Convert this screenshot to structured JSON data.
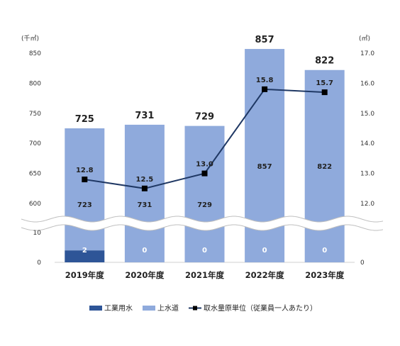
{
  "chart_data": {
    "type": "bar",
    "categories": [
      "2019年度",
      "2020年度",
      "2021年度",
      "2022年度",
      "2023年度"
    ],
    "left_axis_unit": "(千㎥)",
    "right_axis_unit": "(㎥)",
    "left_ticks_upper": [
      "850",
      "800",
      "750",
      "700",
      "650",
      "600"
    ],
    "left_ticks_lower": [
      "10",
      "0"
    ],
    "right_ticks_upper": [
      "17.0",
      "16.0",
      "15.0",
      "14.0",
      "13.0",
      "12.0"
    ],
    "right_ticks_lower": [
      "0"
    ],
    "axis_break": true,
    "series": [
      {
        "name": "工業用水",
        "type": "bar",
        "color": "#2e5597",
        "values": [
          2,
          0,
          0,
          0,
          0
        ]
      },
      {
        "name": "上水道",
        "type": "bar",
        "color": "#8faadc",
        "values": [
          723,
          731,
          729,
          857,
          822
        ]
      },
      {
        "name": "取水量原単位（従業員一人あたり）",
        "type": "line",
        "axis": "right",
        "color": "#1f3864",
        "values": [
          12.8,
          12.5,
          13.0,
          15.8,
          15.7
        ]
      }
    ],
    "industrial_labels": [
      "2",
      "0",
      "0",
      "0",
      "0"
    ],
    "water_labels": [
      "723",
      "731",
      "729",
      "857",
      "822"
    ],
    "totals": [
      "725",
      "731",
      "729",
      "857",
      "822"
    ],
    "line_labels": [
      "12.8",
      "12.5",
      "13.0",
      "15.8",
      "15.7"
    ],
    "legend_position": "bottom"
  }
}
